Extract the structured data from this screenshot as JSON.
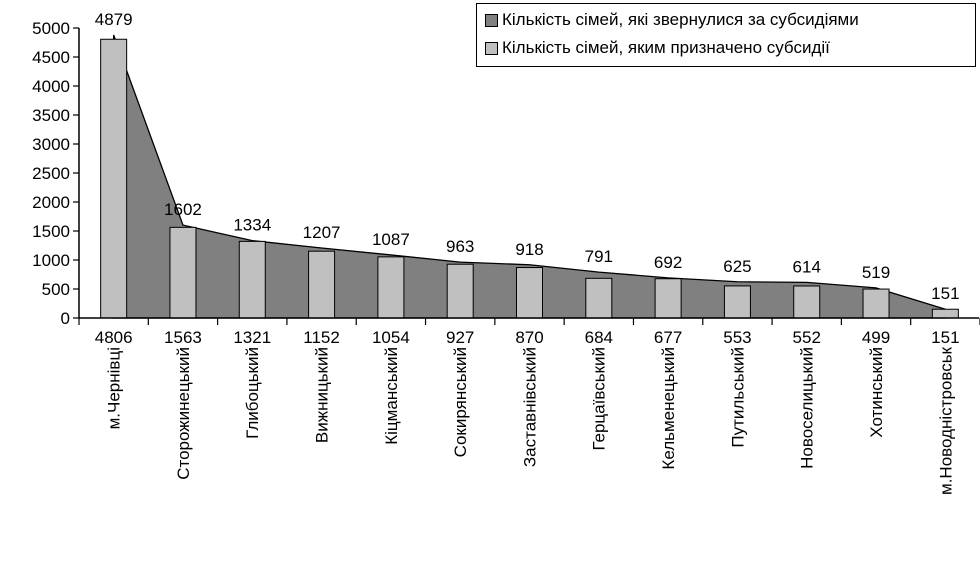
{
  "chart_data": {
    "type": "bar",
    "categories": [
      "м.Чернівці",
      "Сторожинецький",
      "Глибоцький",
      "Вижницький",
      "Кіцманський",
      "Сокирянський",
      "Заставнівський",
      "Герцаївський",
      "Кельменецький",
      "Путильський",
      "Новоселицький",
      "Хотинський",
      "м.Новодністровськ"
    ],
    "series": [
      {
        "name": "Кількість сімей, які звернулися за субсидіями",
        "chart_type": "area",
        "color": "#808080",
        "values": [
          4879,
          1602,
          1334,
          1207,
          1087,
          963,
          918,
          791,
          692,
          625,
          614,
          519,
          151
        ]
      },
      {
        "name": "Кількість сімей, яким призначено субсидії",
        "chart_type": "bar",
        "color": "#c0c0c0",
        "values": [
          4806,
          1563,
          1321,
          1152,
          1054,
          927,
          870,
          684,
          677,
          553,
          552,
          499,
          151
        ]
      }
    ],
    "yticks": [
      0,
      500,
      1000,
      1500,
      2000,
      2500,
      3000,
      3500,
      4000,
      4500,
      5000
    ],
    "ylim": [
      0,
      5000
    ],
    "grid": false,
    "legend_position": "top-right",
    "xlabel": "",
    "ylabel": ""
  }
}
